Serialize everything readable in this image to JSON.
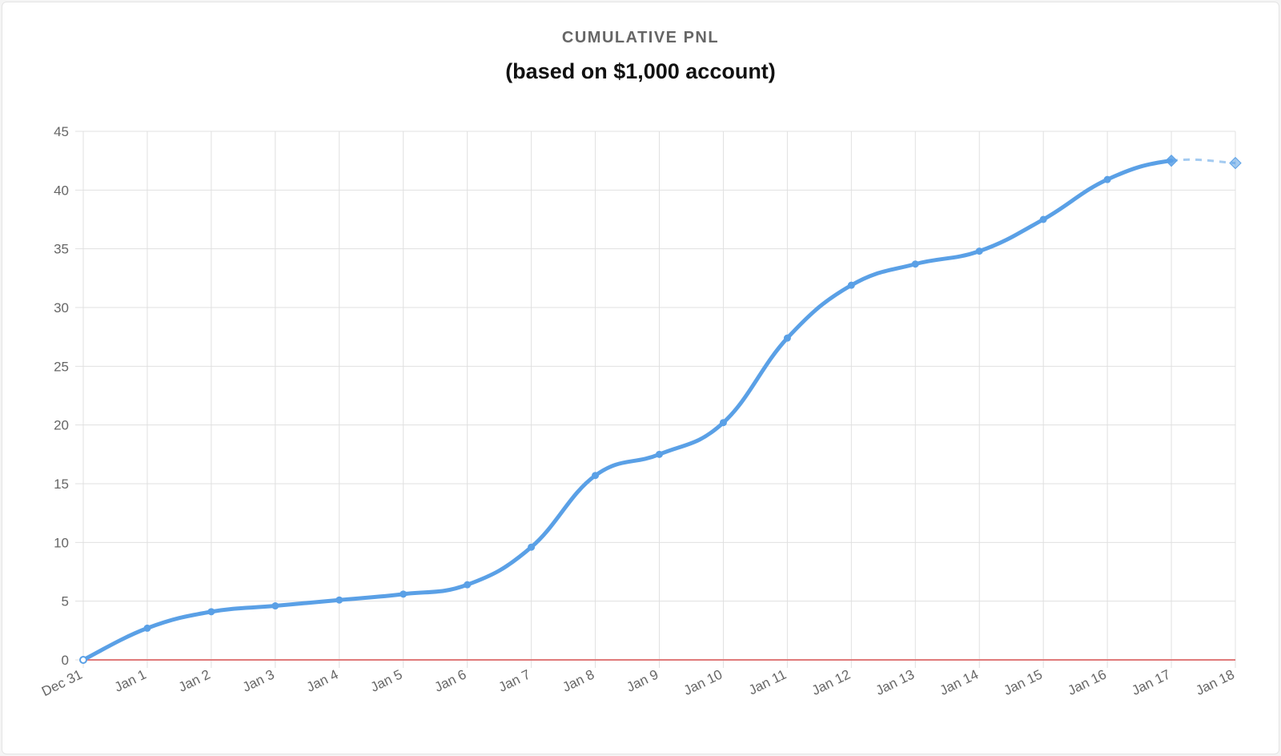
{
  "chart_data": {
    "type": "line",
    "title": "CUMULATIVE PNL",
    "subtitle": "(based on $1,000 account)",
    "xlabel": "",
    "ylabel": "",
    "ylim": [
      0,
      45
    ],
    "yticks": [
      "0",
      "5",
      "10",
      "15",
      "20",
      "25",
      "30",
      "35",
      "40",
      "45"
    ],
    "grid": true,
    "legend": "none",
    "categories": [
      "Dec 31",
      "Jan 1",
      "Jan 2",
      "Jan 3",
      "Jan 4",
      "Jan 5",
      "Jan 6",
      "Jan 7",
      "Jan 8",
      "Jan 9",
      "Jan 10",
      "Jan 11",
      "Jan 12",
      "Jan 13",
      "Jan 14",
      "Jan 15",
      "Jan 16",
      "Jan 17",
      "Jan 18"
    ],
    "series": [
      {
        "values": [
          0,
          2.7,
          4.1,
          4.6,
          5.1,
          5.6,
          6.4,
          9.6,
          15.7,
          17.5,
          20.2,
          27.4,
          31.9,
          33.7,
          34.8,
          37.5,
          40.9,
          42.5,
          42.3
        ],
        "color": "#5aa0e6",
        "projected_from_index": 17
      }
    ],
    "baseline": {
      "y": 0,
      "color": "#e07a7a"
    },
    "colors": {
      "grid": "#e0e0e0",
      "axis_text": "#666666",
      "line": "#5aa0e6",
      "baseline": "#e07a7a"
    }
  }
}
